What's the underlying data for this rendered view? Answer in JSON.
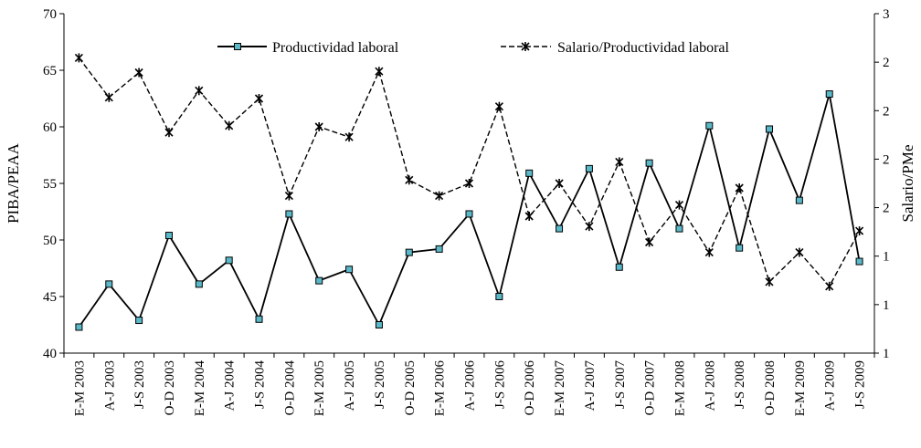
{
  "chart_data": {
    "type": "line",
    "title": "",
    "xlabel": "",
    "ylabel": "PIBA/PEAA",
    "ylabel_right": "Salario/PMe",
    "ylim": [
      40,
      70
    ],
    "yticks": [
      40,
      45,
      50,
      55,
      60,
      65,
      70
    ],
    "y2ticks": [
      "1",
      "1",
      "1",
      "2",
      "2",
      "2",
      "2",
      "3"
    ],
    "legend_position": "top",
    "grid": false,
    "categories": [
      "E-M 2003",
      "A-J 2003",
      "J-S 2003",
      "O-D 2003",
      "E-M 2004",
      "A-J 2004",
      "J-S 2004",
      "O-D 2004",
      "E-M 2005",
      "A-J 2005",
      "J-S 2005",
      "O-D 2005",
      "E-M 2006",
      "A-J 2006",
      "J-S 2006",
      "O-D 2006",
      "E-M 2007",
      "A-J 2007",
      "J-S 2007",
      "O-D 2007",
      "E-M 2008",
      "A-J 2008",
      "J-S 2008",
      "O-D 2008",
      "E-M 2009",
      "A-J 2009",
      "J-S 2009"
    ],
    "series": [
      {
        "name": "Productividad laboral",
        "axis": "left",
        "style": "solid",
        "marker": "square",
        "color": "#000000",
        "marker_color": "#5bb8c8",
        "values": [
          42.3,
          46.1,
          42.9,
          50.4,
          46.1,
          48.2,
          43.0,
          52.3,
          46.4,
          47.4,
          42.5,
          48.9,
          49.2,
          52.3,
          45.0,
          55.9,
          51.0,
          56.3,
          47.6,
          56.8,
          51.0,
          60.1,
          49.3,
          59.8,
          53.5,
          62.9,
          48.1
        ]
      },
      {
        "name": "Salario/Productividad laboral",
        "axis": "right",
        "style": "dashed",
        "marker": "asterisk",
        "color": "#000000",
        "values": [
          66.1,
          62.6,
          64.8,
          59.5,
          63.2,
          60.1,
          62.5,
          53.9,
          60.0,
          59.1,
          64.9,
          55.3,
          53.9,
          55.0,
          61.8,
          52.1,
          55.0,
          51.2,
          56.9,
          49.8,
          53.1,
          48.9,
          54.6,
          46.3,
          48.9,
          45.9,
          50.8
        ]
      }
    ]
  }
}
